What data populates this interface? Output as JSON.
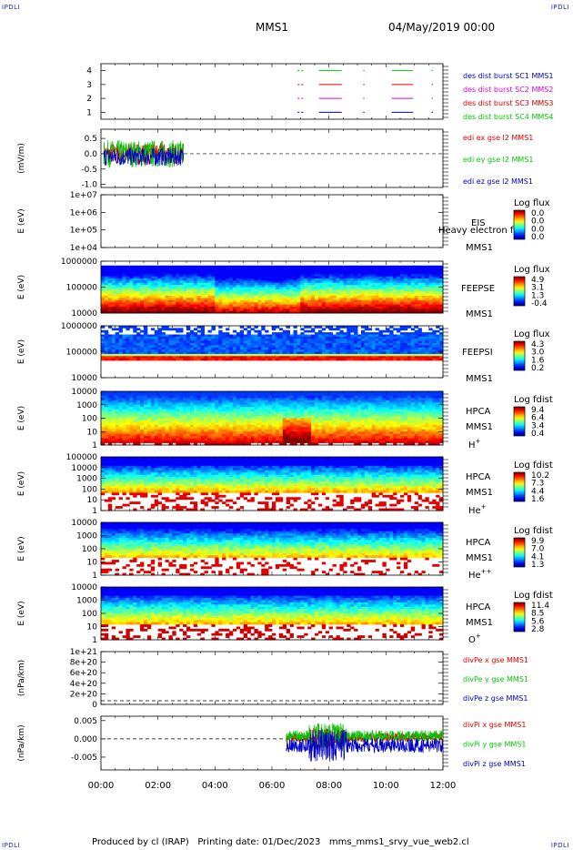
{
  "corners": {
    "tl": "IPDLI",
    "tr": "IPDLI",
    "bl": "IPDLI",
    "br": "IPDLI"
  },
  "header": {
    "spacecraft": "MMS1",
    "date": "04/May/2019 00:00"
  },
  "footer": {
    "text": "Produced by cl (IRAP)   Printing date: 01/Dec/2023   mms_mms1_srvy_vue_web2.cl"
  },
  "colors": {
    "sc1": "#0000c8",
    "sc2": "#dd00dd",
    "sc3": "#dd0000",
    "sc4": "#00c800",
    "x": "#dd0000",
    "y": "#00c800",
    "z": "#0000c8"
  },
  "chart_data": [
    {
      "type": "line",
      "panel": "burst",
      "yticks": [
        "1",
        "2",
        "3",
        "4"
      ],
      "ylim": [
        0.5,
        4.5
      ],
      "series": [
        {
          "name": "des dist burst SC1 MMS1",
          "level": 1,
          "color": "#0000c8",
          "intervals": [
            [
              6.9,
              7.1
            ],
            [
              7.65,
              8.45
            ],
            [
              9.2,
              9.25
            ],
            [
              10.2,
              10.95
            ],
            [
              11.6,
              11.65
            ]
          ]
        },
        {
          "name": "des dist burst SC2 MMS2",
          "level": 2,
          "color": "#dd00dd",
          "intervals": [
            [
              6.9,
              7.1
            ],
            [
              7.65,
              8.45
            ],
            [
              9.2,
              9.25
            ],
            [
              10.2,
              10.95
            ],
            [
              11.6,
              11.65
            ]
          ]
        },
        {
          "name": "des dist burst SC3 MMS3",
          "level": 3,
          "color": "#dd0000",
          "intervals": [
            [
              6.9,
              7.1
            ],
            [
              7.65,
              8.45
            ],
            [
              9.2,
              9.25
            ],
            [
              10.2,
              10.95
            ],
            [
              11.6,
              11.65
            ]
          ]
        },
        {
          "name": "des dist burst SC4 MMS4",
          "level": 4,
          "color": "#00c800",
          "intervals": [
            [
              6.9,
              7.1
            ],
            [
              7.65,
              8.45
            ],
            [
              9.2,
              9.25
            ],
            [
              10.2,
              10.95
            ],
            [
              11.6,
              11.65
            ]
          ]
        }
      ]
    },
    {
      "type": "line",
      "panel": "edi",
      "ylabel": "(mV/m)",
      "yticks": [
        "0.5",
        "0.0",
        "-0.5",
        "-1.0"
      ],
      "ylim": [
        -1.1,
        0.8
      ],
      "xrange": [
        0.1,
        2.9
      ],
      "series": [
        {
          "name": "edi ex gse l2 MMS1",
          "color": "#dd0000"
        },
        {
          "name": "edi ey gse l2 MMS1",
          "color": "#00c800"
        },
        {
          "name": "edi ez gse l2 MMS1",
          "color": "#0000c8"
        }
      ]
    },
    {
      "type": "heatmap",
      "panel": "eis",
      "ylabel": "E (eV)",
      "yticks": [
        "1e+07",
        "1e+06",
        "1e+05",
        "1e+04"
      ],
      "labels": [
        "EIS",
        "MMS1"
      ],
      "overlap": "Heavy electron fo",
      "cbar_title": "Log flux",
      "cbar_ticks": [
        "0.0",
        "0.0",
        "0.0",
        "0.0"
      ]
    },
    {
      "type": "heatmap",
      "panel": "feepse",
      "ylabel": "E (eV)",
      "yticks": [
        "1000000",
        "100000",
        "10000"
      ],
      "labels": [
        "FEEPSE",
        "MMS1"
      ],
      "cbar_title": "Log flux",
      "cbar_ticks": [
        "4.9",
        "3.1",
        "1.3",
        "-0.4"
      ]
    },
    {
      "type": "heatmap",
      "panel": "feepsi",
      "ylabel": "E (eV)",
      "yticks": [
        "1000000",
        "100000",
        "10000"
      ],
      "labels": [
        "FEEPSI",
        "MMS1"
      ],
      "cbar_title": "Log flux",
      "cbar_ticks": [
        "4.3",
        "3.0",
        "1.6",
        "0.2"
      ]
    },
    {
      "type": "heatmap",
      "panel": "hpca_h",
      "ylabel": "E (eV)",
      "yticks": [
        "10000",
        "1000",
        "100",
        "10",
        "1"
      ],
      "labels": [
        "HPCA",
        "MMS1"
      ],
      "species": "H",
      "charge": "+",
      "cbar_title": "Log fdist",
      "cbar_ticks": [
        "9.4",
        "6.4",
        "3.4",
        "0.4"
      ]
    },
    {
      "type": "heatmap",
      "panel": "hpca_he",
      "ylabel": "E (eV)",
      "yticks": [
        "100000",
        "10000",
        "1000",
        "100",
        "10",
        "1"
      ],
      "labels": [
        "HPCA",
        "MMS1"
      ],
      "species": "He",
      "charge": "+",
      "cbar_title": "Log fdist",
      "cbar_ticks": [
        "10.2",
        "7.3",
        "4.4",
        "1.6"
      ]
    },
    {
      "type": "heatmap",
      "panel": "hpca_hepp",
      "ylabel": "E (eV)",
      "yticks": [
        "10000",
        "1000",
        "100",
        "10",
        "1"
      ],
      "labels": [
        "HPCA",
        "MMS1"
      ],
      "species": "He",
      "charge": "++",
      "cbar_title": "Log fdist",
      "cbar_ticks": [
        "9.9",
        "7.0",
        "4.1",
        "1.3"
      ]
    },
    {
      "type": "heatmap",
      "panel": "hpca_o",
      "ylabel": "E (eV)",
      "yticks": [
        "10000",
        "1000",
        "100",
        "10",
        "1"
      ],
      "labels": [
        "HPCA",
        "MMS1"
      ],
      "species": "O",
      "charge": "+",
      "cbar_title": "Log fdist",
      "cbar_ticks": [
        "11.4",
        "8.5",
        "5.6",
        "2.8"
      ]
    },
    {
      "type": "line",
      "panel": "divpe",
      "ylabel": "(nPa/km)",
      "yticks": [
        "1e+21",
        "8e+20",
        "6e+20",
        "4e+20",
        "2e+20",
        "0"
      ],
      "series": [
        {
          "name": "divPe x gse MMS1",
          "color": "#dd0000"
        },
        {
          "name": "divPe y gse MMS1",
          "color": "#00c800"
        },
        {
          "name": "divPe z gse MMS1",
          "color": "#0000c8"
        }
      ]
    },
    {
      "type": "line",
      "panel": "divpi",
      "ylabel": "(nPa/km)",
      "yticks": [
        "0.005",
        "0.000",
        "-0.005"
      ],
      "ylim": [
        -0.0085,
        0.0062
      ],
      "xrange": [
        6.5,
        12.0
      ],
      "series": [
        {
          "name": "divPi x gse MMS1",
          "color": "#dd0000"
        },
        {
          "name": "divPi y gse MMS1",
          "color": "#00c800"
        },
        {
          "name": "divPi z gse MMS1",
          "color": "#0000c8"
        }
      ]
    }
  ],
  "xaxis": {
    "ticks": [
      "00:00",
      "02:00",
      "04:00",
      "06:00",
      "08:00",
      "10:00",
      "12:00"
    ],
    "xlim": [
      0,
      12
    ]
  }
}
